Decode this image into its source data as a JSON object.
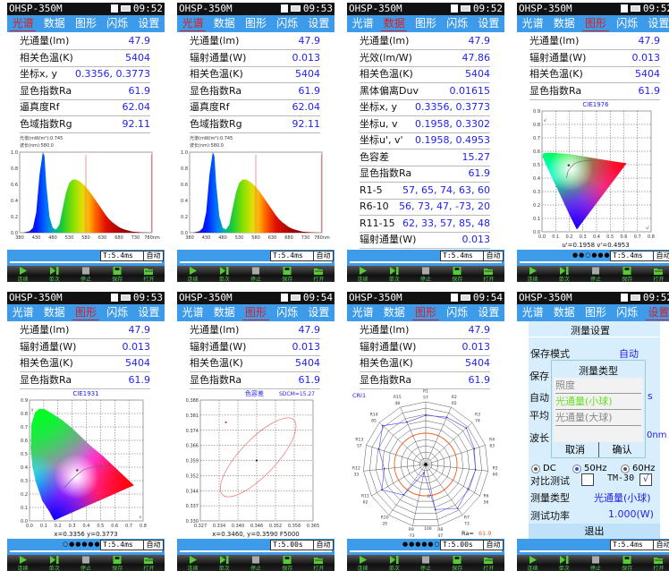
{
  "app_title": "OHSP-350M",
  "tabs": [
    "光谱",
    "数据",
    "图形",
    "闪烁",
    "设置"
  ],
  "toolbar": [
    "连续",
    "单次",
    "停止",
    "保存",
    "打开"
  ],
  "colors": {
    "accent": "#3d9be9",
    "value_text": "#2222ee",
    "active_tab": "#e21b1b",
    "toolbar_icon": "#55cc33"
  },
  "panels": [
    {
      "time": "09:52",
      "active_tab": 0,
      "view": "spectrum",
      "exposure": "T:5.4ms",
      "mode": "自动",
      "rows": [
        [
          "光通量(lm)",
          "47.9"
        ],
        [
          "相关色温(K)",
          "5404"
        ],
        [
          "坐标x, y",
          "0.3356, 0.3773"
        ],
        [
          "显色指数Ra",
          "61.9"
        ],
        [
          "逼真度Rf",
          "62.04"
        ],
        [
          "色域指数Rg",
          "92.11"
        ]
      ],
      "annotation": [
        "光谱(mW/m²):0.745",
        "波长(nm):580.0"
      ]
    },
    {
      "time": "09:53",
      "active_tab": 0,
      "view": "spectrum",
      "exposure": "T:5.4ms",
      "mode": "自动",
      "rows": [
        [
          "光通量(lm)",
          "47.9"
        ],
        [
          "辐射通量(W)",
          "0.013"
        ],
        [
          "相关色温(K)",
          "5404"
        ],
        [
          "显色指数Ra",
          "61.9"
        ],
        [
          "逼真度Rf",
          "62.04"
        ],
        [
          "色域指数Rg",
          "92.11"
        ]
      ],
      "annotation": [
        "光谱(mW/m²):0.745",
        "波长(nm):580.0"
      ]
    },
    {
      "time": "09:52",
      "active_tab": 1,
      "view": "data",
      "exposure": "T:5.4ms",
      "mode": "自动",
      "rows": [
        [
          "光通量(lm)",
          "47.9"
        ],
        [
          "光效(lm/W)",
          "47.86"
        ],
        [
          "相关色温(K)",
          "5404"
        ],
        [
          "黑体偏离Duv",
          "0.01615"
        ],
        [
          "坐标x, y",
          "0.3356, 0.3773"
        ],
        [
          "坐标u, v",
          "0.1958, 0.3302"
        ],
        [
          "坐标u', v'",
          "0.1958, 0.4953"
        ],
        [
          "色容差",
          "15.27"
        ],
        [
          "显色指数Ra",
          "61.9"
        ],
        [
          "R1-5",
          "57, 65, 74, 63, 60"
        ],
        [
          "R6-10",
          "56, 73, 47, -73, 20"
        ],
        [
          "R11-15",
          "62, 33, 57, 85, 48"
        ],
        [
          "辐射通量(W)",
          "0.013"
        ]
      ]
    },
    {
      "time": "09:52",
      "active_tab": 2,
      "view": "cie1976",
      "exposure": "T:5.4ms",
      "mode": "自动",
      "pager": "●●○●●●",
      "rows": [
        [
          "光通量(lm)",
          "47.9"
        ],
        [
          "辐射通量(W)",
          "0.013"
        ],
        [
          "相关色温(K)",
          "5404"
        ],
        [
          "显色指数Ra",
          "61.9"
        ]
      ]
    },
    {
      "time": "09:53",
      "active_tab": 2,
      "view": "cie1931",
      "exposure": "T:5.4ms",
      "mode": "自动",
      "pager": "○●●●●●",
      "rows": [
        [
          "光通量(lm)",
          "47.9"
        ],
        [
          "辐射通量(W)",
          "0.013"
        ],
        [
          "相关色温(K)",
          "5404"
        ],
        [
          "显色指数Ra",
          "61.9"
        ]
      ]
    },
    {
      "time": "09:54",
      "active_tab": 2,
      "view": "sdcm",
      "exposure": "T:5.00s",
      "mode": "自动",
      "rows": [
        [
          "光通量(lm)",
          "47.9"
        ],
        [
          "辐射通量(W)",
          "0.013"
        ],
        [
          "相关色温(K)",
          "5404"
        ],
        [
          "显色指数Ra",
          "61.9"
        ]
      ]
    },
    {
      "time": "09:54",
      "active_tab": 2,
      "view": "cri",
      "exposure": "T:5.00s",
      "mode": "自动",
      "pager": "●●●●●○",
      "rows": [
        [
          "光通量(lm)",
          "47.9"
        ],
        [
          "辐射通量(W)",
          "0.013"
        ],
        [
          "相关色温(K)",
          "5404"
        ],
        [
          "显色指数Ra",
          "61.9"
        ]
      ]
    },
    {
      "time": "09:52",
      "active_tab": 4,
      "view": "settings",
      "exposure": "T:5.4ms",
      "mode": "自动"
    }
  ],
  "settings": {
    "title": "测量设置",
    "save_mode_label": "保存模式",
    "save_mode_value": "自动",
    "partial_labels": [
      "保存",
      "自动",
      "平均",
      "波长"
    ],
    "partial_values": [
      "s",
      "0nm"
    ],
    "radio_options": [
      "DC",
      "50Hz",
      "60Hz"
    ],
    "radio_selected": 1,
    "compare_label": "对比测试",
    "compare_checked": false,
    "tm30_label": "TM-30",
    "tm30_checked": true,
    "check_mark": "√",
    "type_label": "测量类型",
    "type_value": "光通量(小球)",
    "power_label": "测试功率",
    "power_value": "1.000(W)",
    "exit_label": "退出",
    "popup": {
      "title": "测量类型",
      "options": [
        "照度",
        "光通量(小球)",
        "光通量(大球)"
      ],
      "selected": 1,
      "cancel": "取消",
      "confirm": "确认"
    }
  },
  "chart_data": [
    {
      "type": "area",
      "id": "spectrum",
      "xlim": [
        380,
        780
      ],
      "ylim": [
        0,
        1.0
      ],
      "x_ticks": [
        "380",
        "430",
        "480",
        "530",
        "580",
        "630",
        "680",
        "730",
        "780nm"
      ],
      "y_ticks": [
        "0.0",
        "0.2",
        "0.4",
        "0.6",
        "0.8",
        "1.0"
      ],
      "x": [
        380,
        390,
        400,
        410,
        420,
        430,
        440,
        450,
        455,
        460,
        470,
        480,
        490,
        500,
        510,
        520,
        530,
        540,
        550,
        560,
        570,
        580,
        590,
        600,
        610,
        620,
        630,
        640,
        650,
        660,
        670,
        680,
        690,
        700,
        710,
        720,
        730,
        750,
        780
      ],
      "y": [
        0,
        0,
        0.01,
        0.02,
        0.06,
        0.25,
        0.72,
        1.0,
        0.95,
        0.62,
        0.2,
        0.06,
        0.04,
        0.1,
        0.3,
        0.5,
        0.62,
        0.66,
        0.66,
        0.64,
        0.61,
        0.57,
        0.52,
        0.46,
        0.4,
        0.34,
        0.28,
        0.22,
        0.17,
        0.13,
        0.1,
        0.07,
        0.05,
        0.035,
        0.025,
        0.015,
        0.01,
        0.005,
        0
      ],
      "markers": [
        580,
        778
      ]
    },
    {
      "type": "scatter",
      "id": "cie1931",
      "title": "CIE1931",
      "xlim": [
        0,
        0.8
      ],
      "ylim": [
        0,
        0.9
      ],
      "x_ticks": [
        "0.0",
        "0.1",
        "0.2",
        "0.3",
        "0.4",
        "0.5",
        "0.6",
        "0.7",
        "0.8"
      ],
      "y_ticks": [
        "0.0",
        "0.1",
        "0.2",
        "0.3",
        "0.4",
        "0.5",
        "0.6",
        "0.7",
        "0.8",
        "0.9"
      ],
      "axis_x": "x",
      "axis_y": "y",
      "point": [
        0.3356,
        0.3773
      ],
      "readout": "x=0.3356  y=0.3773"
    },
    {
      "type": "scatter",
      "id": "cie1976",
      "title": "CIE1976",
      "xlim": [
        0,
        0.8
      ],
      "ylim": [
        0,
        0.9
      ],
      "x_ticks": [
        "0.0",
        "0.1",
        "0.2",
        "0.3",
        "0.4",
        "0.5",
        "0.6",
        "0.7",
        "0.8"
      ],
      "y_ticks": [
        "0.0",
        "0.1",
        "0.2",
        "0.3",
        "0.4",
        "0.5",
        "0.6",
        "0.7",
        "0.8",
        "0.9"
      ],
      "axis_x": "u'",
      "axis_y": "v'",
      "point": [
        0.1958,
        0.4953
      ],
      "readout": "u'=0.1958  v'=0.4953"
    },
    {
      "type": "scatter",
      "id": "sdcm",
      "title": "色容差",
      "subtitle": "SDCM=15.27",
      "xlim": [
        0.327,
        0.365
      ],
      "ylim": [
        0.33,
        0.388
      ],
      "x_ticks": [
        "0.327",
        "0.334",
        "0.340",
        "0.346",
        "0.352",
        "0.358",
        "0.365"
      ],
      "y_ticks": [
        "0.330",
        "0.337",
        "0.344",
        "0.352",
        "0.359",
        "0.366",
        "0.374",
        "0.381",
        "0.388"
      ],
      "center": [
        0.346,
        0.359
      ],
      "measured": [
        0.3356,
        0.3773
      ],
      "ellipse_axis": [
        [
          0.3345,
          0.3425
        ],
        [
          0.3585,
          0.3785
        ]
      ],
      "readout": "x=0.3460, y=0.3590  F5000"
    },
    {
      "type": "radar",
      "id": "cri",
      "title": "CRI1",
      "range": [
        -100,
        100
      ],
      "ring_labels": [
        "0",
        "100"
      ],
      "categories": [
        "R1",
        "R2",
        "R3",
        "R4",
        "R5",
        "R6",
        "R7",
        "R8",
        "R9",
        "R10",
        "R11",
        "R12",
        "R13",
        "R14",
        "R15"
      ],
      "values": [
        57,
        65,
        74,
        63,
        60,
        56,
        73,
        47,
        -73,
        20,
        62,
        33,
        57,
        85,
        48
      ],
      "ra_label": "Ra=",
      "ra_value": "61.9"
    }
  ]
}
